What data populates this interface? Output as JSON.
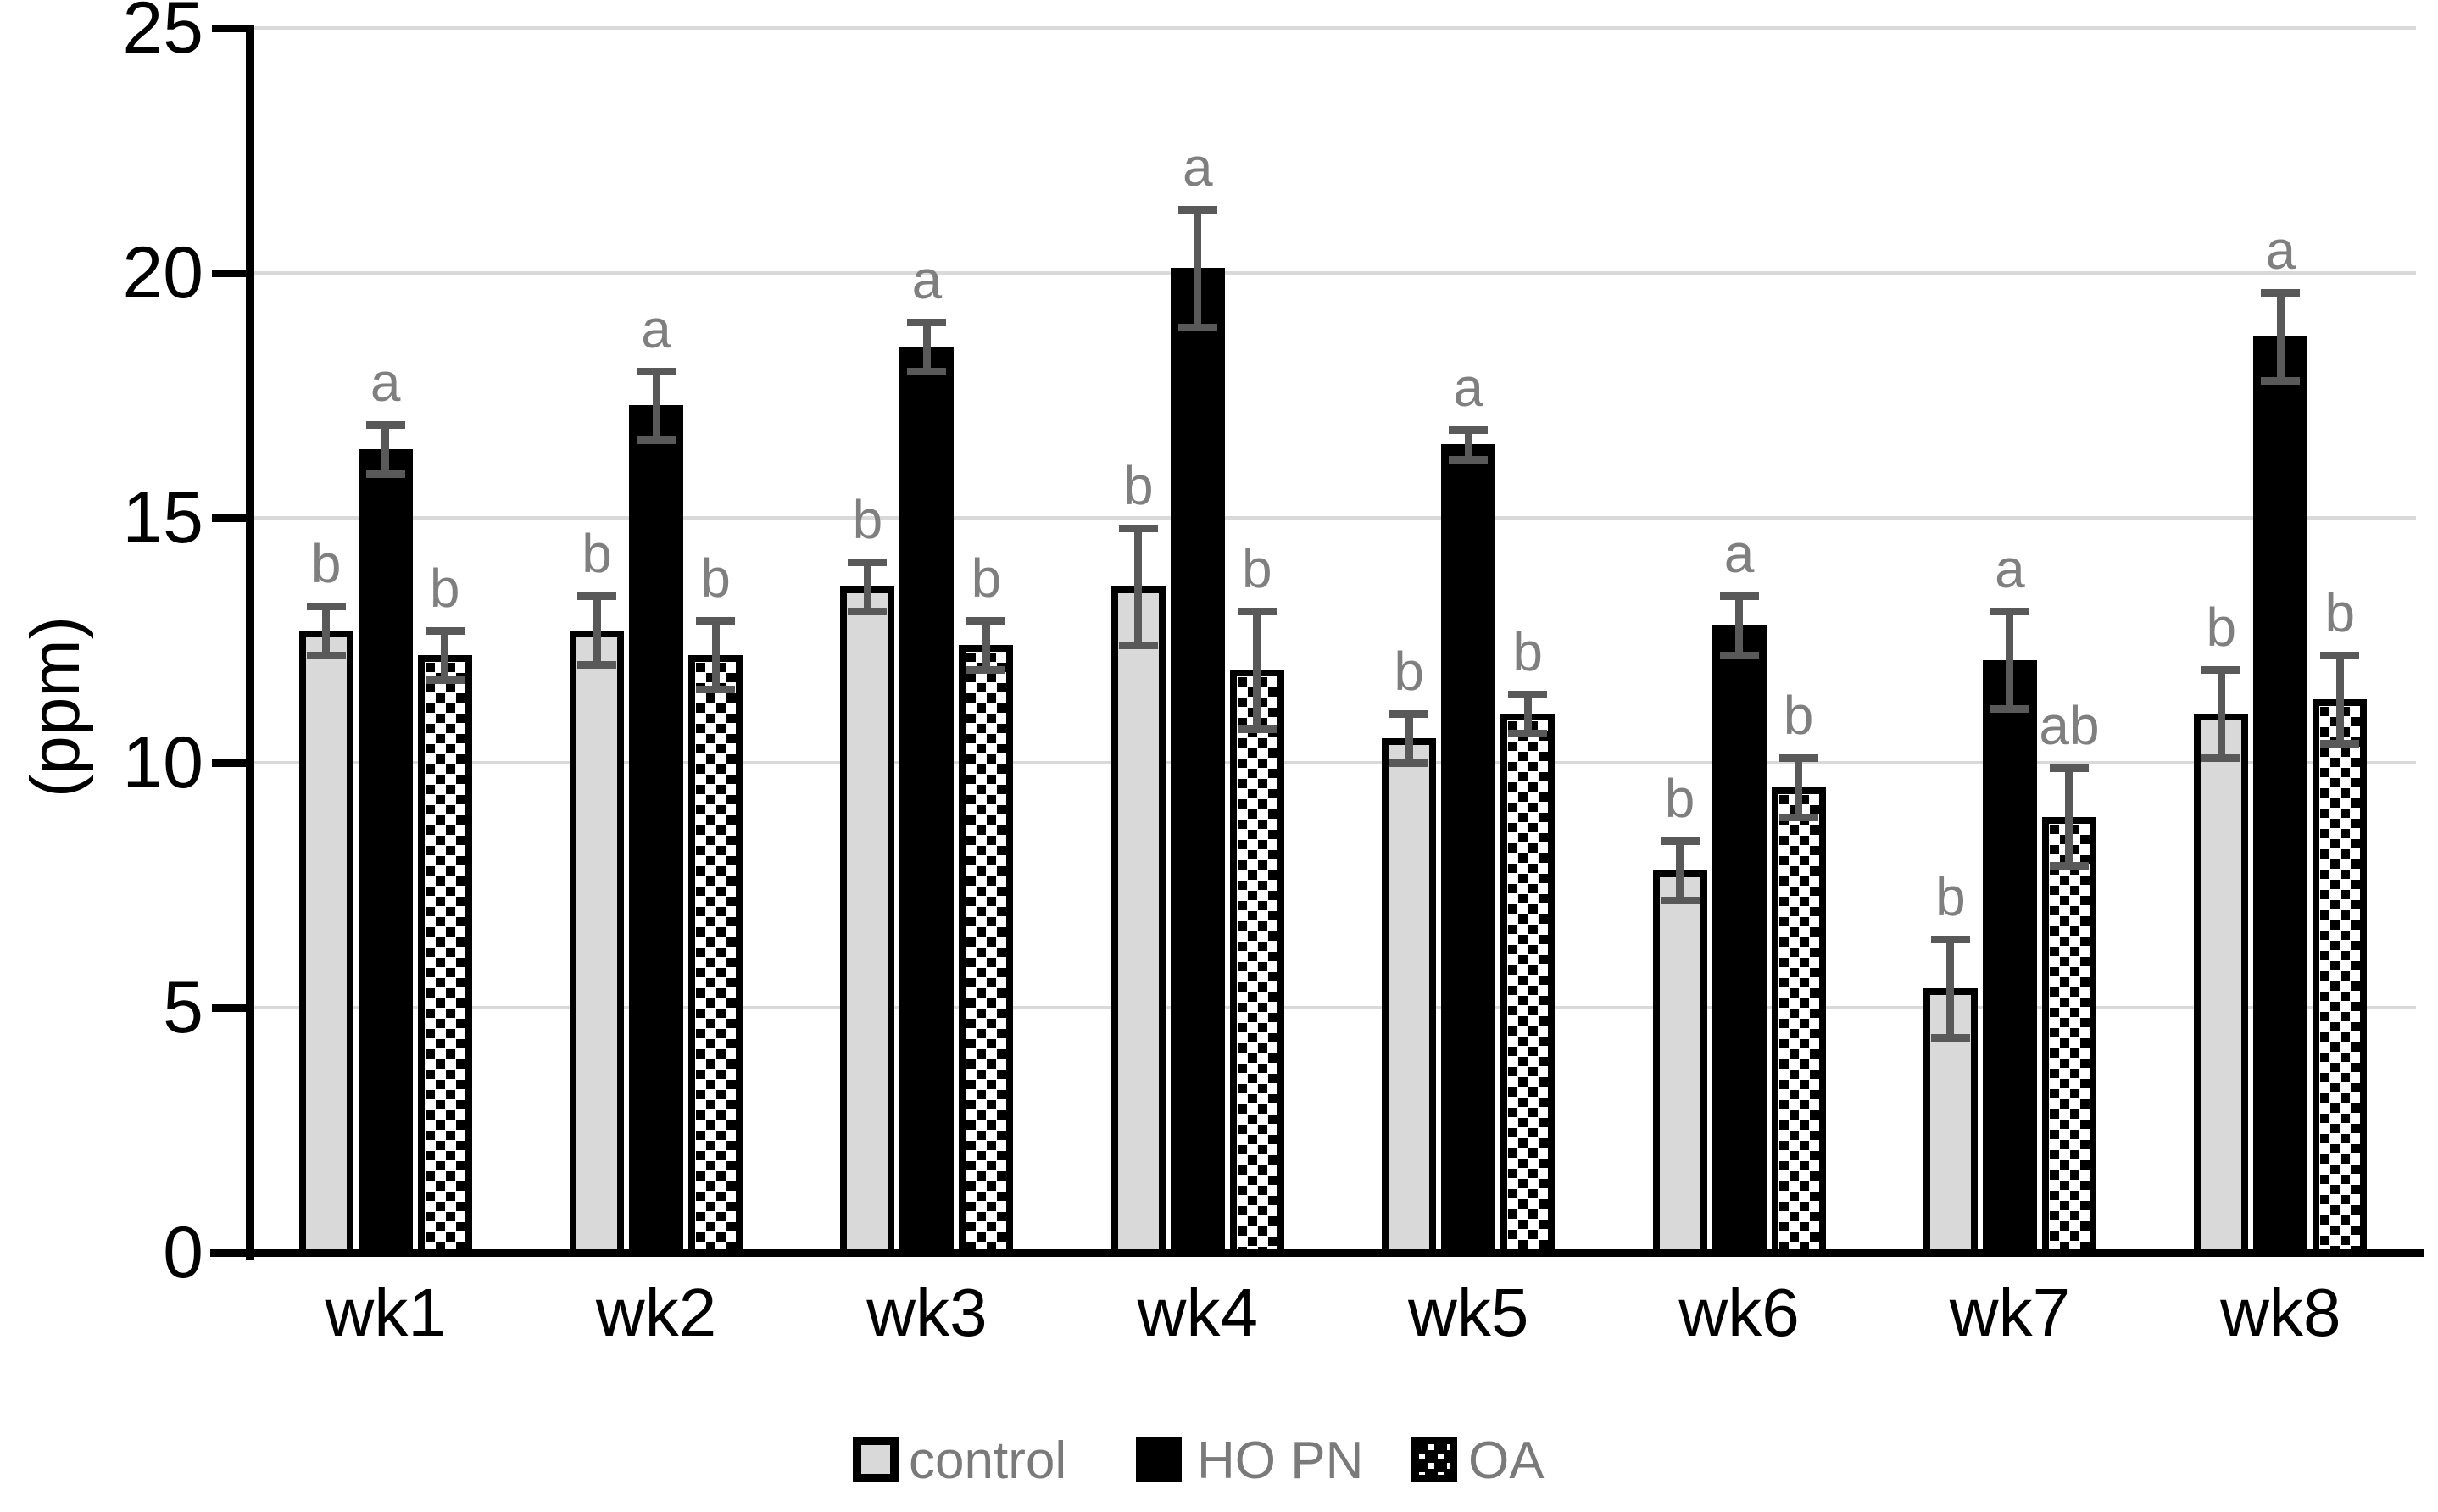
{
  "page": {
    "background": "#ffffff"
  },
  "chart_data": {
    "type": "bar",
    "title": "",
    "xlabel": "",
    "ylabel": "(ppm)",
    "ylim": [
      0,
      25
    ],
    "yticks": [
      "0",
      "5",
      "10",
      "15",
      "20",
      "25"
    ],
    "ytick_values": [
      0,
      5,
      10,
      15,
      20,
      25
    ],
    "grid": true,
    "legend_position": "bottom",
    "categories": [
      "wk1",
      "wk2",
      "wk3",
      "wk4",
      "wk5",
      "wk6",
      "wk7",
      "wk8"
    ],
    "series": [
      {
        "name": "control",
        "style": "control",
        "values": [
          12.7,
          12.7,
          13.6,
          13.6,
          10.5,
          7.8,
          5.4,
          11.0
        ],
        "errors": [
          0.5,
          0.7,
          0.5,
          1.2,
          0.5,
          0.6,
          1.0,
          0.9
        ],
        "letters": [
          "b",
          "b",
          "b",
          "b",
          "b",
          "b",
          "b",
          "b"
        ]
      },
      {
        "name": "HO PN",
        "style": "hopn",
        "values": [
          16.4,
          17.3,
          18.5,
          20.1,
          16.5,
          12.8,
          12.1,
          18.7
        ],
        "errors": [
          0.5,
          0.7,
          0.5,
          1.2,
          0.3,
          0.6,
          1.0,
          0.9
        ],
        "letters": [
          "a",
          "a",
          "a",
          "a",
          "a",
          "a",
          "a",
          "a"
        ]
      },
      {
        "name": "OA",
        "style": "oa",
        "values": [
          12.2,
          12.2,
          12.4,
          11.9,
          11.0,
          9.5,
          8.9,
          11.3
        ],
        "errors": [
          0.5,
          0.7,
          0.5,
          1.2,
          0.4,
          0.6,
          1.0,
          0.9
        ],
        "letters": [
          "b",
          "b",
          "b",
          "b",
          "b",
          "b",
          "ab",
          "b"
        ]
      }
    ],
    "legend": [
      "control",
      "HO PN",
      "OA"
    ],
    "colors": {
      "control_fill": "#d9d9d9",
      "hopn_fill": "#000000",
      "oa_pattern": "black-squares-on-white",
      "bar_border": "#000000",
      "error_bar": "#595959",
      "sig_letter": "#7f7f7f",
      "legend_text": "#7a7a7a",
      "gridline": "#d9d9d9",
      "axis": "#000000",
      "tick_label": "#000000"
    }
  }
}
